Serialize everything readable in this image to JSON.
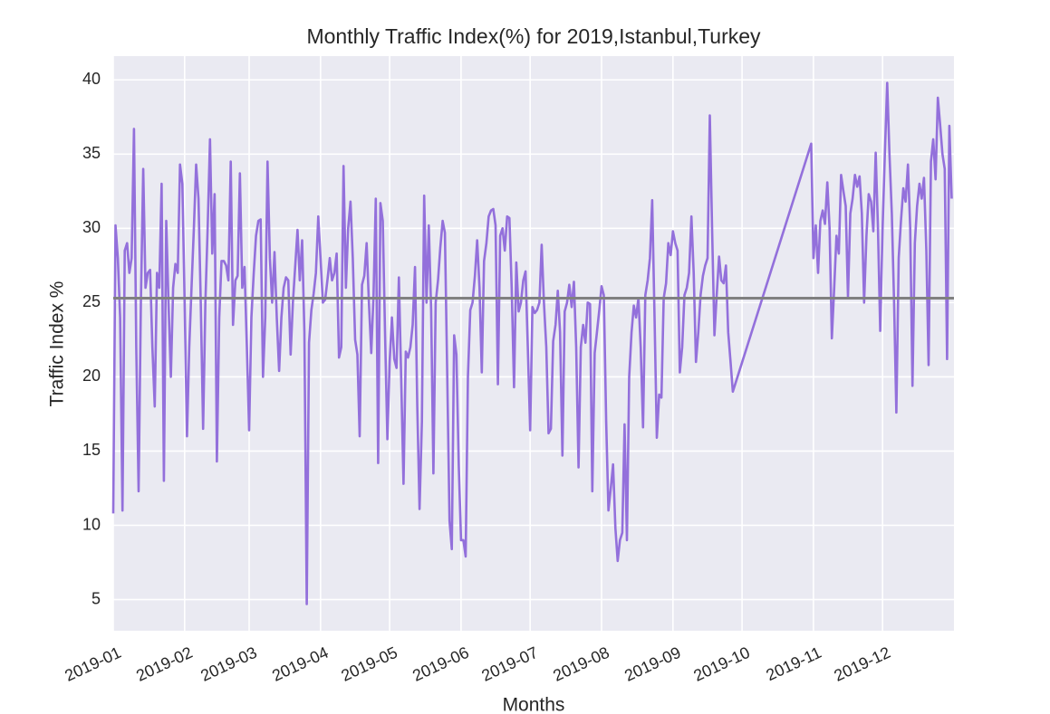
{
  "chart_data": {
    "type": "line",
    "title": "Monthly Traffic Index(%) for 2019,Istanbul,Turkey",
    "xlabel": "Months",
    "ylabel": "Traffic Index %",
    "color": "#9370db",
    "grid": true,
    "background": "#eaeaf2",
    "hline": {
      "value": 25.3,
      "color": "#808080"
    },
    "xlim": [
      0,
      365
    ],
    "ylim": [
      2.9,
      41.6
    ],
    "xticks": [
      {
        "value": 0,
        "label": "2019-01"
      },
      {
        "value": 31,
        "label": "2019-02"
      },
      {
        "value": 59,
        "label": "2019-03"
      },
      {
        "value": 90,
        "label": "2019-04"
      },
      {
        "value": 120,
        "label": "2019-05"
      },
      {
        "value": 151,
        "label": "2019-06"
      },
      {
        "value": 181,
        "label": "2019-07"
      },
      {
        "value": 212,
        "label": "2019-08"
      },
      {
        "value": 243,
        "label": "2019-09"
      },
      {
        "value": 273,
        "label": "2019-10"
      },
      {
        "value": 304,
        "label": "2019-11"
      },
      {
        "value": 334,
        "label": "2019-12"
      }
    ],
    "yticks": [
      5,
      10,
      15,
      20,
      25,
      30,
      35,
      40
    ],
    "x": [
      0,
      1,
      2,
      3,
      4,
      5,
      6,
      7,
      8,
      9,
      10,
      11,
      12,
      13,
      14,
      15,
      16,
      17,
      18,
      19,
      20,
      21,
      22,
      23,
      24,
      25,
      26,
      27,
      28,
      29,
      30,
      31,
      32,
      33,
      34,
      35,
      36,
      37,
      38,
      39,
      40,
      41,
      42,
      43,
      44,
      45,
      46,
      47,
      48,
      49,
      50,
      51,
      52,
      53,
      54,
      55,
      56,
      57,
      58,
      59,
      60,
      61,
      62,
      63,
      64,
      65,
      66,
      67,
      68,
      69,
      70,
      71,
      72,
      73,
      74,
      75,
      76,
      77,
      78,
      79,
      80,
      81,
      82,
      83,
      84,
      85,
      86,
      87,
      88,
      89,
      90,
      91,
      92,
      93,
      94,
      95,
      96,
      97,
      98,
      99,
      100,
      101,
      102,
      103,
      104,
      105,
      106,
      107,
      108,
      109,
      110,
      111,
      112,
      113,
      114,
      115,
      116,
      117,
      118,
      119,
      120,
      121,
      122,
      123,
      124,
      125,
      126,
      127,
      128,
      129,
      130,
      131,
      132,
      133,
      134,
      135,
      136,
      137,
      138,
      139,
      140,
      141,
      142,
      143,
      144,
      145,
      146,
      147,
      148,
      149,
      150,
      151,
      152,
      153,
      154,
      155,
      156,
      157,
      158,
      159,
      160,
      161,
      162,
      163,
      164,
      165,
      166,
      167,
      168,
      169,
      170,
      171,
      172,
      173,
      174,
      175,
      176,
      177,
      178,
      179,
      180,
      181,
      182,
      183,
      184,
      185,
      186,
      187,
      188,
      189,
      190,
      191,
      192,
      193,
      194,
      195,
      196,
      197,
      198,
      199,
      200,
      201,
      202,
      203,
      204,
      205,
      206,
      207,
      208,
      209,
      210,
      211,
      212,
      213,
      214,
      215,
      216,
      217,
      218,
      219,
      220,
      221,
      222,
      223,
      224,
      225,
      226,
      227,
      228,
      229,
      230,
      231,
      232,
      233,
      234,
      235,
      236,
      237,
      238,
      239,
      240,
      241,
      242,
      243,
      244,
      245,
      246,
      247,
      248,
      249,
      250,
      251,
      252,
      253,
      254,
      255,
      256,
      257,
      258,
      259,
      260,
      261,
      262,
      263,
      264,
      265,
      266,
      267,
      268,
      269,
      303,
      304,
      305,
      306,
      307,
      308,
      309,
      310,
      311,
      312,
      313,
      314,
      315,
      316,
      317,
      318,
      319,
      320,
      321,
      322,
      323,
      324,
      325,
      326,
      327,
      328,
      329,
      330,
      331,
      332,
      333,
      334,
      335,
      336,
      337,
      338,
      339,
      340,
      341,
      342,
      343,
      344,
      345,
      346,
      347,
      348,
      349,
      350,
      351,
      352,
      353,
      354,
      355,
      356,
      357,
      358,
      359,
      360,
      361,
      362,
      363,
      364
    ],
    "values": [
      10.8,
      30.2,
      28,
      24,
      11,
      28.5,
      29,
      27,
      28,
      36.7,
      22,
      12.3,
      25,
      34,
      26,
      27,
      27.2,
      22,
      18,
      27,
      26,
      33,
      13,
      30.5,
      25,
      20,
      26,
      27.6,
      27,
      34.3,
      33,
      25,
      16,
      22,
      26,
      30,
      34.3,
      32,
      25,
      16.5,
      25,
      30,
      36,
      28.3,
      32.3,
      14.3,
      24,
      27.8,
      27.8,
      27.5,
      26.5,
      34.5,
      23.5,
      26.5,
      26.8,
      33.7,
      26,
      27.4,
      22,
      16.4,
      24,
      27,
      29.5,
      30.5,
      30.6,
      20,
      24,
      34.5,
      28,
      25,
      28.4,
      24,
      20.4,
      24,
      26,
      26.7,
      26.5,
      21.5,
      25,
      27.5,
      29.9,
      26.5,
      29.2,
      23,
      4.7,
      22.3,
      24.5,
      25.6,
      27,
      30.8,
      28,
      25,
      25.2,
      26.5,
      28,
      26.5,
      27,
      28.3,
      21.3,
      22,
      34.2,
      26,
      30,
      31.8,
      28,
      22.5,
      21.5,
      16,
      26.2,
      26.8,
      29,
      25,
      21.6,
      25.5,
      32,
      14.2,
      31.7,
      30.5,
      23,
      15.8,
      21,
      24,
      21.2,
      20.6,
      26.7,
      20,
      12.8,
      21.7,
      21.3,
      22,
      23.5,
      27.4,
      18,
      11.1,
      17,
      32.2,
      25,
      30.2,
      24.5,
      13.5,
      25,
      26.5,
      28.7,
      30.5,
      29.7,
      20,
      10.3,
      8.4,
      22.8,
      21.5,
      14,
      9,
      9,
      7.9,
      20,
      24.5,
      25,
      26.8,
      29.2,
      26,
      20.3,
      27.8,
      29,
      30.8,
      31.2,
      31.3,
      30.2,
      19.5,
      29.5,
      30,
      28.5,
      30.8,
      30.7,
      26,
      19.3,
      27.7,
      24.4,
      25,
      26.5,
      27.1,
      22,
      16.4,
      24.7,
      24.3,
      24.5,
      25,
      28.9,
      25,
      22,
      16.2,
      16.5,
      22.4,
      23.5,
      25.8,
      23,
      14.7,
      24.4,
      25,
      26.2,
      24.7,
      26.4,
      22,
      13.9,
      22,
      23.5,
      22.3,
      25,
      24.9,
      12.3,
      21.6,
      23,
      24.5,
      26.1,
      25.5,
      17,
      11,
      12.5,
      14.1,
      9.8,
      7.6,
      9,
      9.5,
      16.8,
      9,
      20,
      23,
      24.8,
      24,
      25.3,
      22,
      16.6,
      25.5,
      26.5,
      28,
      31.9,
      24,
      15.9,
      18.8,
      18.6,
      25.3,
      26.3,
      29,
      28.2,
      29.8,
      29,
      28.5,
      20.3,
      22,
      25.5,
      26,
      27,
      30.8,
      27,
      21,
      23,
      25.5,
      26.8,
      27.5,
      28,
      37.6,
      30,
      22.8,
      25.5,
      28.1,
      26.5,
      26.3,
      27.5,
      23,
      21,
      19,
      35.7,
      28,
      30.2,
      27,
      30.5,
      31.2,
      30.3,
      33.1,
      30,
      22.6,
      26,
      29.5,
      28.3,
      33.6,
      32.5,
      31.5,
      25.4,
      31,
      32,
      33.6,
      32.8,
      33.5,
      31,
      25,
      29.5,
      32.3,
      31.8,
      29.8,
      35.1,
      30,
      23.1,
      30,
      35,
      39.8,
      35,
      31,
      25,
      17.6,
      28,
      30.5,
      32.7,
      31.8,
      34.3,
      30,
      19.4,
      29,
      31.5,
      33,
      32,
      33.4,
      28.5,
      20.8,
      34.5,
      36,
      33.3,
      38.8,
      37,
      35,
      34,
      21.2,
      36.9,
      32
    ]
  }
}
